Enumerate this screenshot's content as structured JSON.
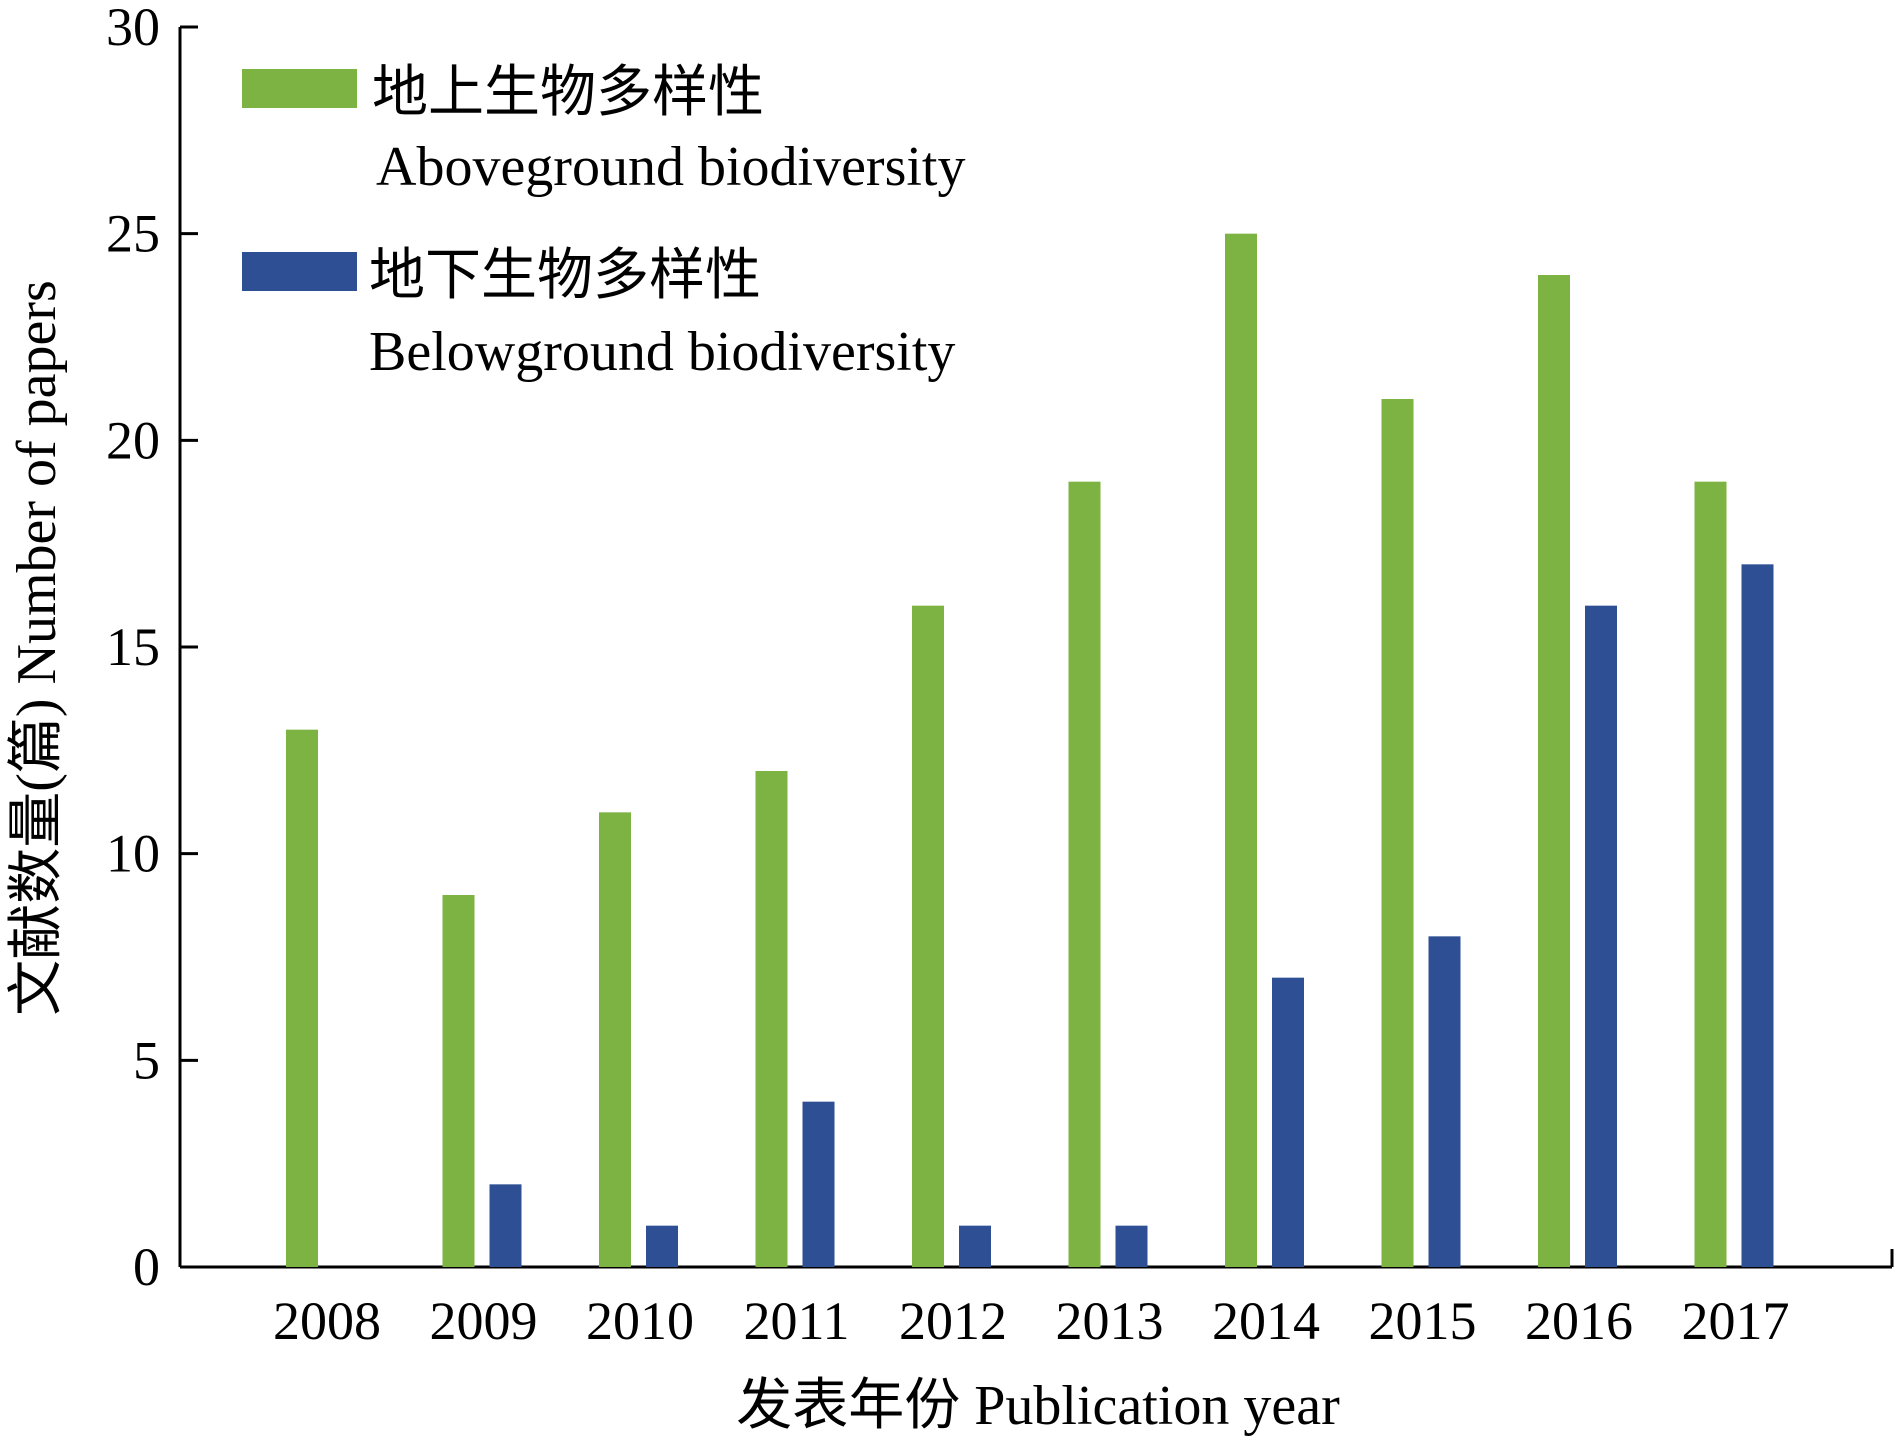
{
  "chart_data": {
    "type": "bar",
    "categories": [
      "2008",
      "2009",
      "2010",
      "2011",
      "2012",
      "2013",
      "2014",
      "2015",
      "2016",
      "2017"
    ],
    "series": [
      {
        "name": "地上生物多样性 Aboveground biodiversity",
        "name_cn": "地上生物多样性",
        "name_en": "Aboveground biodiversity",
        "color": "#7cb342",
        "values": [
          13,
          9,
          11,
          12,
          16,
          19,
          25,
          21,
          24,
          19
        ]
      },
      {
        "name": "地下生物多样性 Belowground biodiversity",
        "name_cn": "地下生物多样性",
        "name_en": "Belowground biodiversity",
        "color": "#2e4f93",
        "values": [
          0,
          2,
          1,
          4,
          1,
          1,
          7,
          8,
          16,
          17
        ]
      }
    ],
    "xlabel": "发表年份 Publication year",
    "ylabel": "文献数量(篇) Number of papers",
    "ylim": [
      0,
      30
    ],
    "yticks": [
      0,
      5,
      10,
      15,
      20,
      25,
      30
    ],
    "grid": false,
    "legend_position": "top-left"
  }
}
